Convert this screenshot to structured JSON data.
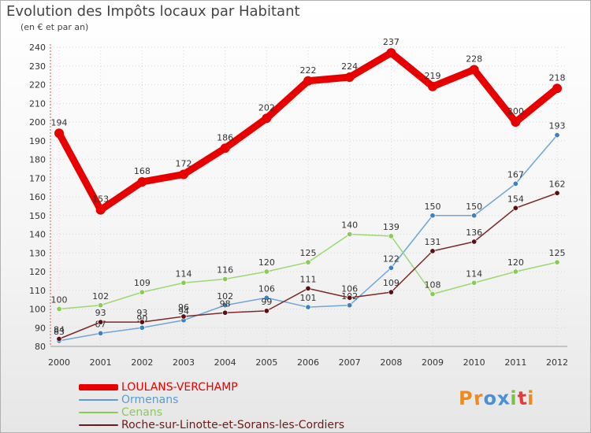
{
  "title": "Evolution des Impôts locaux par Habitant",
  "subtitle": "(en € et par an)",
  "logo": {
    "text": "Proxiti",
    "letters": [
      "P",
      "r",
      "o",
      "x",
      "i",
      "t",
      "i"
    ],
    "colors": [
      "#f08a1c",
      "#f08a1c",
      "#4a90d9",
      "#4a90d9",
      "#7cc242",
      "#e03c3c",
      "#f08a1c"
    ]
  },
  "chart_data": {
    "type": "line",
    "title": "Evolution des Impôts locaux par Habitant",
    "subtitle": "(en € et par an)",
    "x": [
      "2000",
      "2001",
      "2002",
      "2003",
      "2004",
      "2005",
      "2006",
      "2007",
      "2008",
      "2009",
      "2010",
      "2011",
      "2012"
    ],
    "ylim": [
      80,
      240
    ],
    "yticks": [
      80,
      90,
      100,
      110,
      120,
      130,
      140,
      150,
      160,
      170,
      180,
      190,
      200,
      210,
      220,
      230,
      240
    ],
    "grid": true,
    "legend_position": "bottom-left",
    "series": [
      {
        "name": "LOULANS-VERCHAMP",
        "color": "#e80000",
        "line_color": "#e80000",
        "marker_color": "#e80000",
        "width": "thick",
        "values": [
          194,
          153,
          168,
          172,
          186,
          202,
          222,
          224,
          237,
          219,
          228,
          200,
          218
        ]
      },
      {
        "name": "Ormenans",
        "color": "#5a9bd4",
        "line_color": "#6ea6d8",
        "marker_color": "#3b82c4",
        "width": "thin",
        "values": [
          83,
          87,
          90,
          94,
          102,
          106,
          101,
          102,
          122,
          150,
          150,
          167,
          193
        ]
      },
      {
        "name": "Cenans",
        "color": "#88cc55",
        "line_color": "#9cd870",
        "marker_color": "#88cc55",
        "width": "thin",
        "values": [
          100,
          102,
          109,
          114,
          116,
          120,
          125,
          140,
          139,
          108,
          114,
          120,
          125
        ]
      },
      {
        "name": "Roche-sur-Linotte-et-Sorans-les-Cordiers",
        "color": "#6b1a1a",
        "line_color": "#7a2a2a",
        "marker_color": "#5a1010",
        "width": "thin",
        "values": [
          84,
          93,
          93,
          96,
          98,
          99,
          111,
          106,
          109,
          131,
          136,
          154,
          162
        ]
      }
    ]
  }
}
